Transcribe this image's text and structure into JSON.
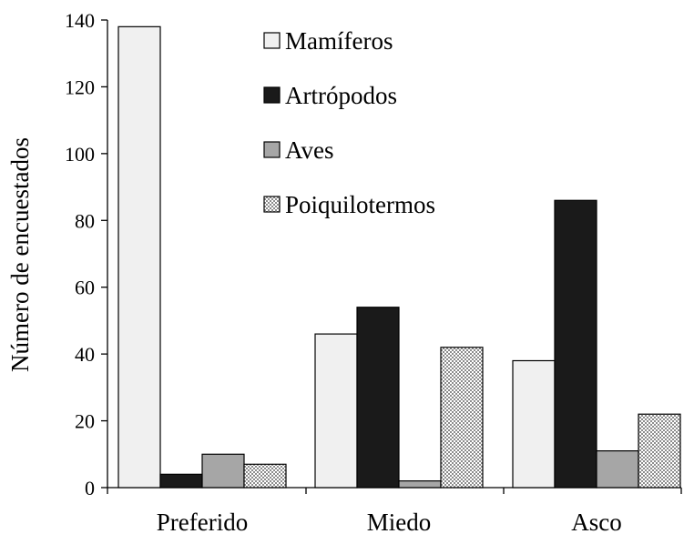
{
  "chart_data": {
    "type": "bar",
    "title": "",
    "xlabel": "",
    "ylabel": "Número de encuestados",
    "ylim": [
      0,
      140
    ],
    "yticks": [
      0,
      20,
      40,
      60,
      80,
      100,
      120,
      140
    ],
    "grid": false,
    "legend_position": "top-right",
    "categories": [
      "Preferido",
      "Miedo",
      "Asco"
    ],
    "series": [
      {
        "name": "Mamíferos",
        "values": [
          138,
          46,
          38
        ],
        "color": "#f0f0f0",
        "pattern": "solid"
      },
      {
        "name": "Artrópodos",
        "values": [
          4,
          54,
          86
        ],
        "color": "#1a1a1a",
        "pattern": "solid"
      },
      {
        "name": "Aves",
        "values": [
          10,
          2,
          11
        ],
        "color": "#a6a6a6",
        "pattern": "solid"
      },
      {
        "name": "Poiquilotermos",
        "values": [
          7,
          42,
          22
        ],
        "color": "#d9d9d9",
        "pattern": "checker"
      }
    ]
  }
}
